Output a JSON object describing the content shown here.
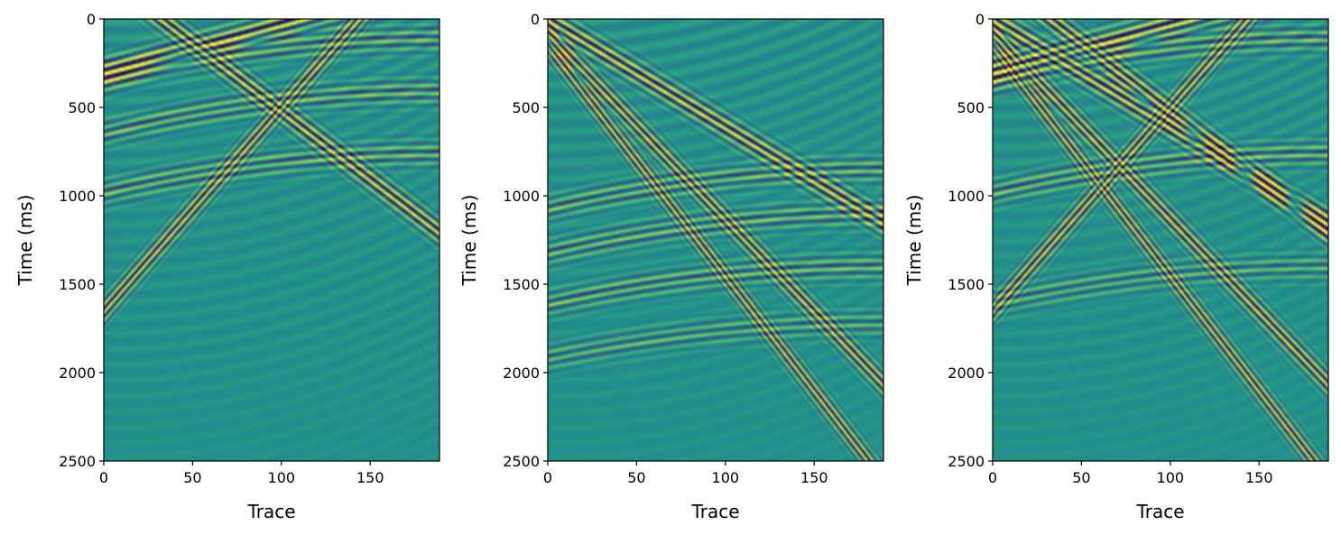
{
  "colors": {
    "colormap": "viridis",
    "dark": "#440154",
    "mid": "#21918c",
    "bright": "#fde725",
    "frame": "#000000"
  },
  "chart_data": [
    {
      "type": "heatmap",
      "panel": "left",
      "xlabel": "Trace",
      "ylabel": "Time (ms)",
      "xlim": [
        0,
        189
      ],
      "ylim": [
        2500,
        0
      ],
      "xticks": [
        "0",
        "50",
        "100",
        "150"
      ],
      "yticks": [
        "0",
        "500",
        "1000",
        "1500",
        "2000",
        "2500"
      ],
      "events": [
        {
          "kind": "linear",
          "t0": -250,
          "slope": 7.7,
          "amp": 1.0
        },
        {
          "kind": "linear",
          "t0": 300,
          "slope": -2.7,
          "amp": 1.0
        },
        {
          "kind": "linear",
          "t0": 1650,
          "slope": -11.5,
          "amp": 1.0
        },
        {
          "kind": "hyperbolic",
          "t0": 110,
          "apex": 189,
          "v": 150,
          "amp": 0.6
        },
        {
          "kind": "hyperbolic",
          "t0": 410,
          "apex": 189,
          "v": 150,
          "amp": 0.6
        },
        {
          "kind": "hyperbolic",
          "t0": 760,
          "apex": 189,
          "v": 160,
          "amp": 0.6
        }
      ]
    },
    {
      "type": "heatmap",
      "panel": "middle",
      "xlabel": "Trace",
      "ylabel": "Time (ms)",
      "xlim": [
        0,
        189
      ],
      "ylim": [
        2500,
        0
      ],
      "xticks": [
        "0",
        "50",
        "100",
        "150"
      ],
      "yticks": [
        "0",
        "500",
        "1000",
        "1500",
        "2000",
        "2500"
      ],
      "events": [
        {
          "kind": "linear",
          "t0": 0,
          "slope": 6.1,
          "amp": 1.0
        },
        {
          "kind": "linear",
          "t0": 80,
          "slope": 10.5,
          "amp": 1.0
        },
        {
          "kind": "linear",
          "t0": 150,
          "slope": 13.0,
          "amp": 1.0
        },
        {
          "kind": "hyperbolic",
          "t0": 850,
          "apex": 189,
          "v": 160,
          "amp": 0.6
        },
        {
          "kind": "hyperbolic",
          "t0": 1100,
          "apex": 189,
          "v": 160,
          "amp": 0.6
        },
        {
          "kind": "hyperbolic",
          "t0": 1400,
          "apex": 189,
          "v": 170,
          "amp": 0.6
        },
        {
          "kind": "hyperbolic",
          "t0": 1720,
          "apex": 189,
          "v": 180,
          "amp": 0.5
        }
      ]
    },
    {
      "type": "heatmap",
      "panel": "right",
      "xlabel": "Trace",
      "ylabel": "Time (ms)",
      "xlim": [
        0,
        189
      ],
      "ylim": [
        2500,
        0
      ],
      "xticks": [
        "0",
        "50",
        "100",
        "150"
      ],
      "yticks": [
        "0",
        "500",
        "1000",
        "1500",
        "2000",
        "2500"
      ],
      "events": [
        {
          "kind": "linear",
          "t0": -250,
          "slope": 7.7,
          "amp": 1.0
        },
        {
          "kind": "linear",
          "t0": 300,
          "slope": -2.7,
          "amp": 1.0
        },
        {
          "kind": "linear",
          "t0": 1650,
          "slope": -11.5,
          "amp": 1.0
        },
        {
          "kind": "linear",
          "t0": 0,
          "slope": 6.1,
          "amp": 1.0
        },
        {
          "kind": "linear",
          "t0": 80,
          "slope": 10.5,
          "amp": 1.0
        },
        {
          "kind": "linear",
          "t0": 150,
          "slope": 13.0,
          "amp": 1.0
        },
        {
          "kind": "hyperbolic",
          "t0": 110,
          "apex": 189,
          "v": 150,
          "amp": 0.6
        },
        {
          "kind": "hyperbolic",
          "t0": 760,
          "apex": 189,
          "v": 160,
          "amp": 0.6
        },
        {
          "kind": "hyperbolic",
          "t0": 1400,
          "apex": 189,
          "v": 170,
          "amp": 0.5
        }
      ]
    }
  ]
}
